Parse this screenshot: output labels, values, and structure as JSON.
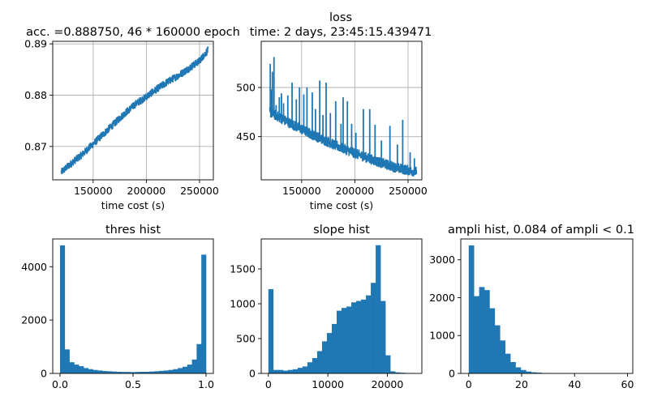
{
  "figure": {
    "suptitle": "loss",
    "subtitle": "time: 2 days, 23:45:15.439471",
    "colors": {
      "series": "#1f77b4",
      "grid": "#b0b0b0",
      "axes": "#000000"
    }
  },
  "chart_data": [
    {
      "type": "line",
      "title": "acc. =0.888750, 46 * 160000 epoch",
      "xlabel": "time cost (s)",
      "ylabel": "",
      "grid": true,
      "xlim": [
        112000,
        263000
      ],
      "ylim": [
        0.8635,
        0.8905
      ],
      "xticks": [
        150000,
        200000,
        250000
      ],
      "xtick_labels": [
        "150000",
        "200000",
        "250000"
      ],
      "yticks": [
        0.87,
        0.88,
        0.89
      ],
      "ytick_labels": [
        "0.87",
        "0.88",
        "0.89"
      ],
      "series": [
        {
          "x": [
            120000,
            130000,
            140000,
            150000,
            160000,
            170000,
            180000,
            190000,
            200000,
            210000,
            220000,
            230000,
            240000,
            250000,
            258000
          ],
          "y": [
            0.865,
            0.8668,
            0.8685,
            0.8705,
            0.8725,
            0.8745,
            0.8765,
            0.8783,
            0.8797,
            0.8812,
            0.8826,
            0.8838,
            0.8852,
            0.8867,
            0.8888
          ],
          "noise": 0.0007
        }
      ]
    },
    {
      "type": "line",
      "title": "",
      "xlabel": "time cost (s)",
      "ylabel": "",
      "grid": true,
      "xlim": [
        112000,
        263000
      ],
      "ylim": [
        406,
        547
      ],
      "xticks": [
        150000,
        200000,
        250000
      ],
      "xtick_labels": [
        "150000",
        "200000",
        "250000"
      ],
      "yticks": [
        450,
        500
      ],
      "ytick_labels": [
        "450",
        "500"
      ],
      "series": [
        {
          "x": [
            120000,
            140000,
            160000,
            180000,
            200000,
            220000,
            240000,
            258000
          ],
          "y": [
            475,
            463,
            452,
            442,
            433,
            425,
            418,
            414
          ],
          "noise": 5,
          "spikes": [
            [
              120500,
              524
            ],
            [
              121500,
              498
            ],
            [
              122500,
              516
            ],
            [
              124000,
              531
            ],
            [
              126000,
              482
            ],
            [
              129000,
              490
            ],
            [
              131000,
              494
            ],
            [
              133000,
              484
            ],
            [
              137000,
              492
            ],
            [
              141000,
              505
            ],
            [
              145000,
              488
            ],
            [
              148000,
              500
            ],
            [
              152000,
              493
            ],
            [
              155000,
              500
            ],
            [
              160000,
              495
            ],
            [
              163000,
              478
            ],
            [
              167000,
              507
            ],
            [
              170000,
              472
            ],
            [
              173000,
              505
            ],
            [
              177000,
              474
            ],
            [
              182000,
              486
            ],
            [
              187000,
              463
            ],
            [
              189000,
              490
            ],
            [
              193000,
              486
            ],
            [
              197000,
              463
            ],
            [
              201000,
              454
            ],
            [
              208000,
              478
            ],
            [
              214000,
              478
            ],
            [
              219000,
              462
            ],
            [
              225000,
              446
            ],
            [
              233000,
              461
            ],
            [
              240000,
              442
            ],
            [
              245000,
              467
            ],
            [
              252000,
              434
            ],
            [
              256000,
              428
            ]
          ]
        }
      ]
    },
    {
      "type": "bar",
      "title": "thres hist",
      "xlabel": "",
      "ylabel": "",
      "grid": false,
      "xlim": [
        -0.05,
        1.05
      ],
      "ylim": [
        0,
        5040
      ],
      "bin_range": [
        0,
        1
      ],
      "values": [
        4800,
        900,
        420,
        330,
        270,
        200,
        160,
        130,
        110,
        90,
        80,
        70,
        60,
        55,
        55,
        50,
        55,
        60,
        60,
        70,
        80,
        95,
        110,
        130,
        160,
        200,
        250,
        330,
        520,
        1100,
        4450
      ],
      "xticks": [
        0,
        0.5,
        1
      ],
      "xtick_labels": [
        "0.0",
        "0.5",
        "1.0"
      ],
      "yticks": [
        0,
        2000,
        4000
      ],
      "ytick_labels": [
        "0",
        "2000",
        "4000"
      ]
    },
    {
      "type": "bar",
      "title": "slope hist",
      "xlabel": "",
      "ylabel": "",
      "grid": false,
      "xlim": [
        -1200,
        25800
      ],
      "ylim": [
        0,
        1930
      ],
      "bin_range": [
        0,
        24600
      ],
      "values": [
        1210,
        50,
        50,
        40,
        50,
        60,
        80,
        100,
        160,
        220,
        320,
        460,
        580,
        710,
        900,
        940,
        960,
        1020,
        1040,
        1060,
        1120,
        1300,
        1840,
        1040,
        260,
        30,
        15,
        10,
        5,
        5
      ],
      "xticks": [
        0,
        10000,
        20000
      ],
      "xtick_labels": [
        "0",
        "10000",
        "20000"
      ],
      "yticks": [
        0,
        500,
        1000,
        1500
      ],
      "ytick_labels": [
        "0",
        "500",
        "1000",
        "1500"
      ]
    },
    {
      "type": "bar",
      "title": "ampli hist, 0.084 of ampli < 0.1",
      "xlabel": "",
      "ylabel": "",
      "grid": false,
      "xlim": [
        -3,
        62
      ],
      "ylim": [
        0,
        3550
      ],
      "bin_range": [
        0,
        59
      ],
      "values": [
        3380,
        2040,
        2280,
        2200,
        1720,
        1270,
        870,
        520,
        300,
        160,
        90,
        50,
        30,
        20,
        10,
        8,
        6,
        4,
        3,
        2,
        2,
        1,
        1,
        1,
        1,
        1,
        1,
        1,
        1,
        1
      ],
      "xticks": [
        0,
        20,
        40,
        60
      ],
      "xtick_labels": [
        "0",
        "20",
        "40",
        "60"
      ],
      "yticks": [
        0,
        1000,
        2000,
        3000
      ],
      "ytick_labels": [
        "0",
        "1000",
        "2000",
        "3000"
      ]
    }
  ]
}
